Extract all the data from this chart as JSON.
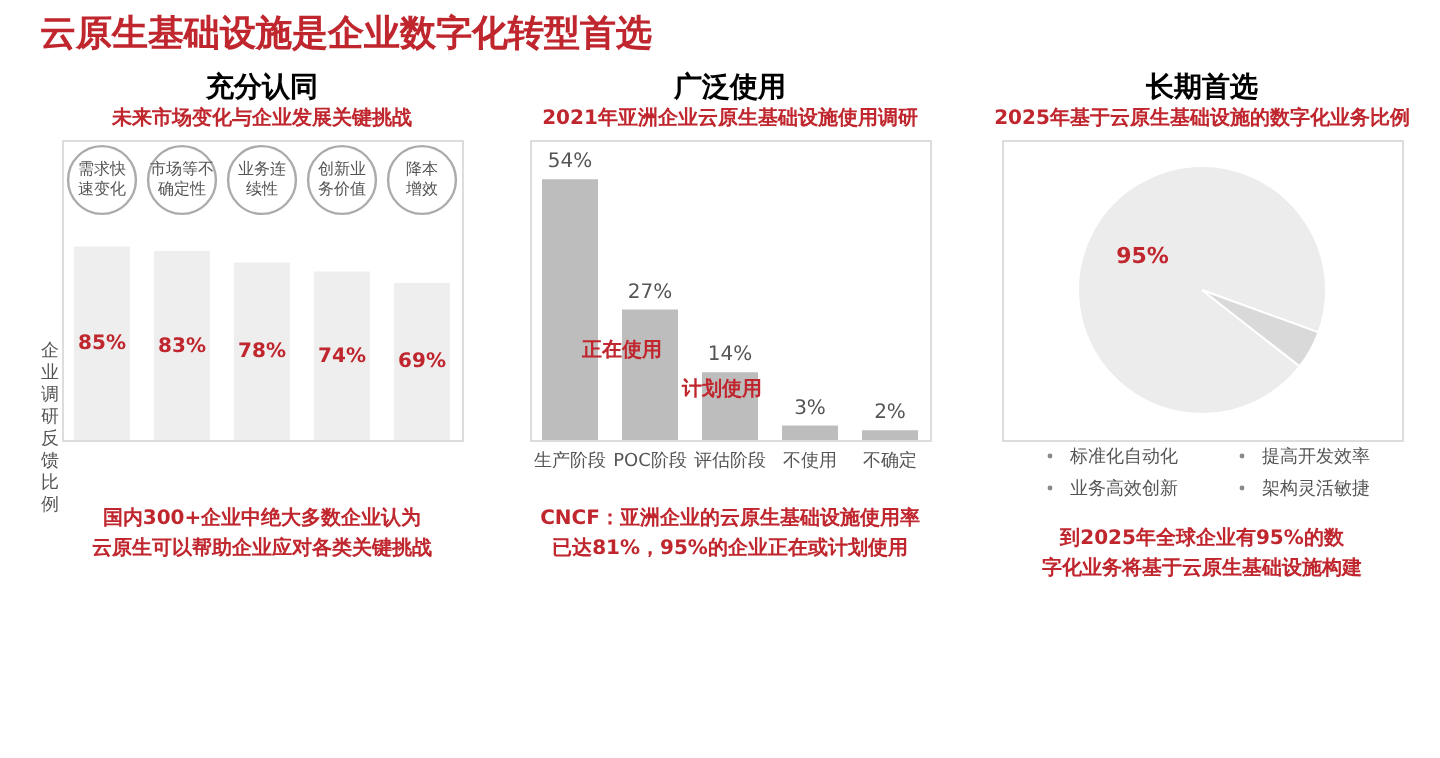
{
  "chart_data": [
    {
      "type": "bar",
      "title": "充分认同",
      "subtitle": "未来市场变化与企业发展关键挑战",
      "ylabel": "企业调研反馈比例",
      "categories": [
        "需求快速变化",
        "市场等不确定性",
        "业务连续性",
        "创新业务价值",
        "降本增效"
      ],
      "values": [
        85,
        83,
        78,
        74,
        69
      ],
      "value_labels": [
        "85%",
        "83%",
        "78%",
        "74%",
        "69%"
      ],
      "color": "#eeeeee",
      "annotations": [
        "云原生基础设施是企业数字化转型首选",
        "国内300+企业中绝大多数企业认为云原生可以帮助企业应对各类关键挑战"
      ]
    },
    {
      "type": "bar",
      "title": "广泛使用",
      "subtitle": "2021年亚洲企业云原生基础设施使用调研",
      "categories": [
        "生产阶段",
        "POC阶段",
        "评估阶段",
        "不使用",
        "不确定"
      ],
      "values": [
        54,
        27,
        14,
        3,
        2
      ],
      "value_labels": [
        "54%",
        "27%",
        "14%",
        "3%",
        "2%"
      ],
      "color": "#bdbdbd",
      "annotations": [
        "正在使用",
        "计划使用",
        "CNCF：亚洲企业的云原生基础设施使用率已达81%，95%的企业正在或计划使用"
      ]
    },
    {
      "type": "pie",
      "title": "长期首选",
      "subtitle": "2025年基于云原生基础设施的数字化业务比例",
      "categories": [
        null,
        null
      ],
      "values": [
        95,
        5
      ],
      "colors": [
        "#ececec",
        "#d9d9d9"
      ],
      "value_labels": [
        "95%",
        null
      ],
      "annotations": [
        "标准化自动化",
        "提高开发效率",
        "业务高效创新",
        "架构灵活敏捷",
        "到2025年全球企业有95%的数字化业务将基于云原生基础设施构建"
      ]
    }
  ]
}
